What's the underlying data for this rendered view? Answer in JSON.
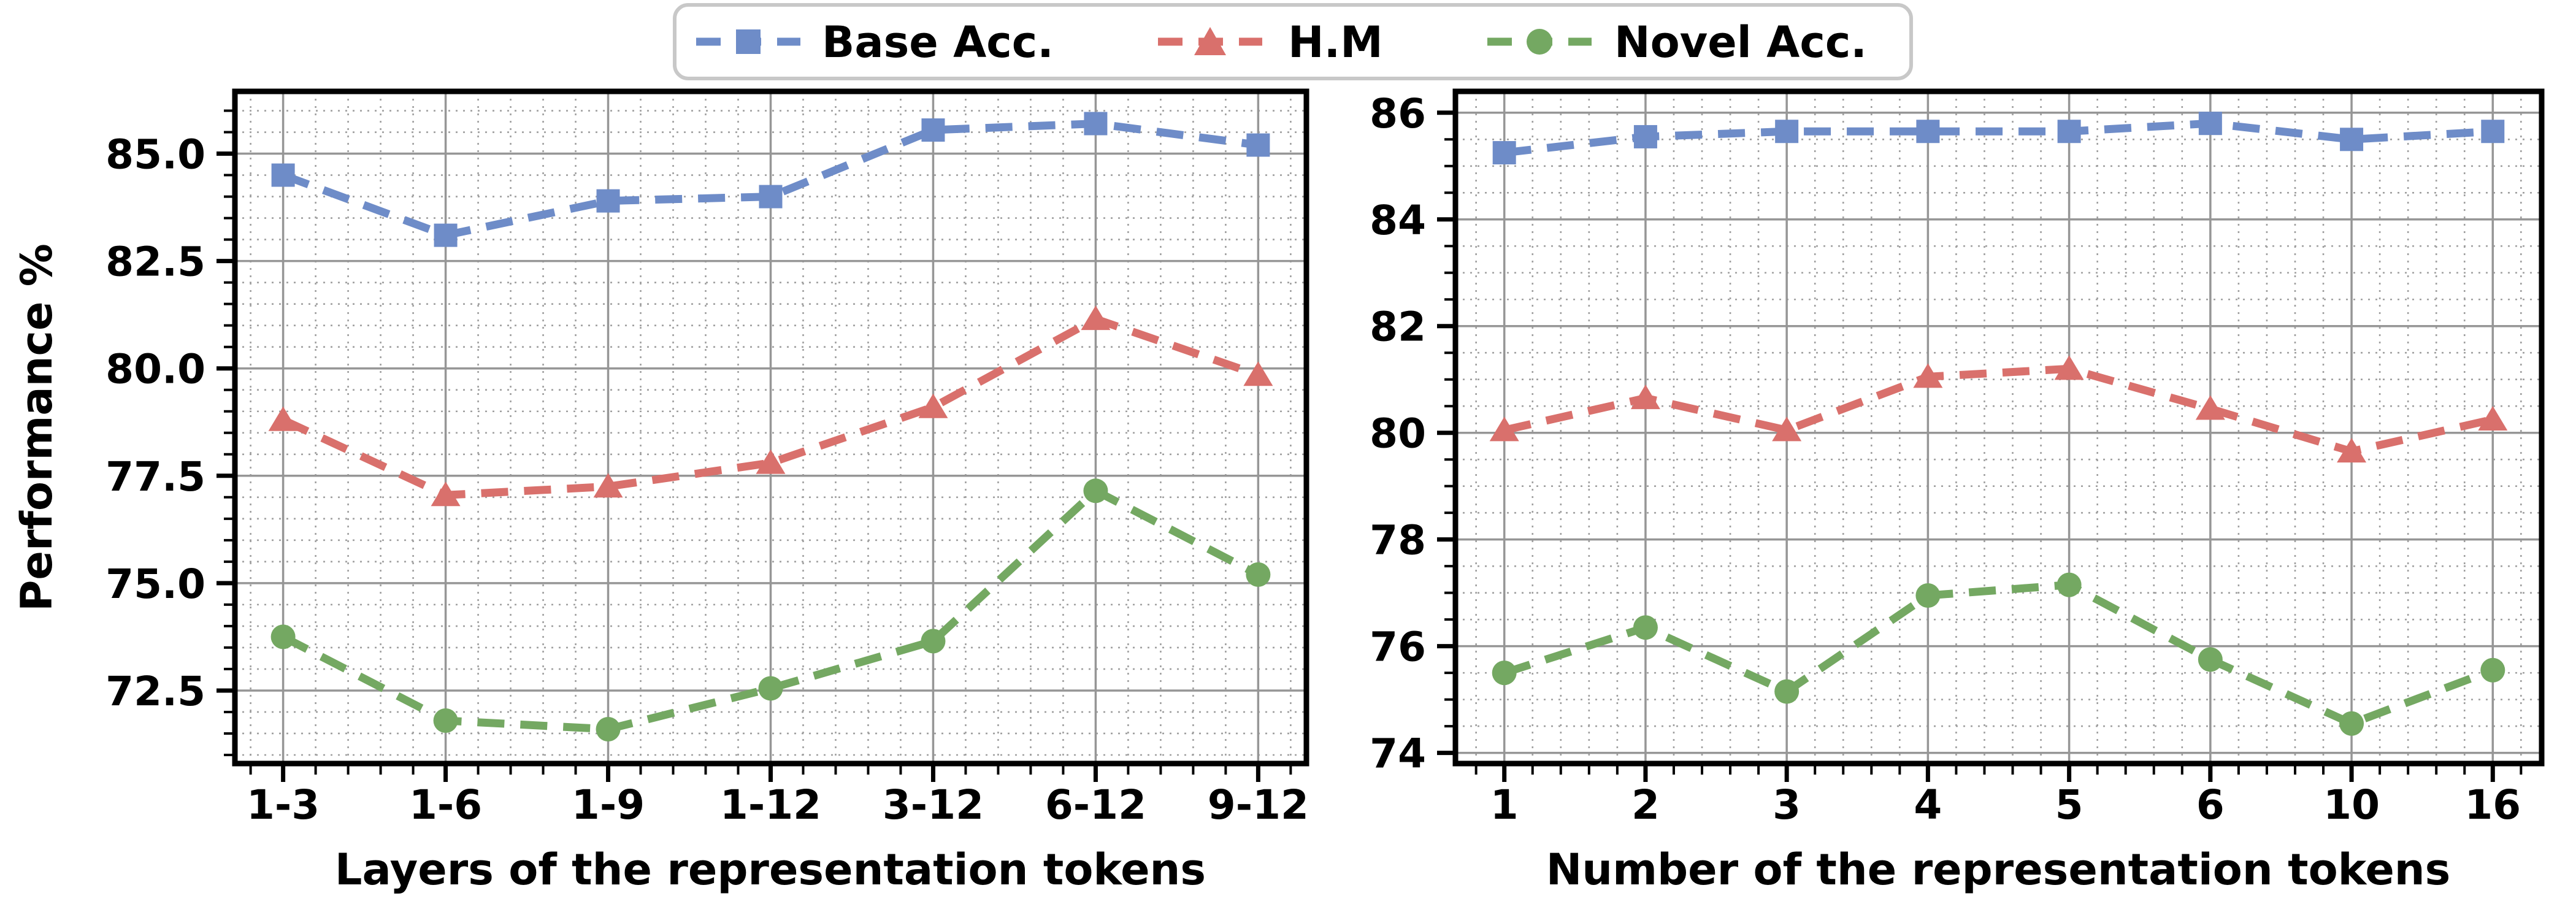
{
  "figure": {
    "background": "#ffffff"
  },
  "legend": {
    "border_color": "#c8c8c8",
    "background": "#ffffff",
    "items": [
      {
        "label": "Base Acc.",
        "color": "#6e8cc8",
        "marker": "square"
      },
      {
        "label": "H.M",
        "color": "#d9706c",
        "marker": "triangle"
      },
      {
        "label": "Novel Acc.",
        "color": "#74a862",
        "marker": "circle"
      }
    ]
  },
  "styles": {
    "major_grid_color": "#969696",
    "minor_grid_color": "#a0a0a0",
    "spine_color": "#000000",
    "text_color": "#000000"
  },
  "chart_data": [
    {
      "type": "line",
      "panel": "left",
      "title": "",
      "xlabel": "Layers of the representation tokens",
      "ylabel": "Performance %",
      "categories": [
        "1-3",
        "1-6",
        "1-9",
        "1-12",
        "3-12",
        "6-12",
        "9-12"
      ],
      "series": [
        {
          "name": "Base Acc.",
          "marker": "square",
          "color": "#6e8cc8",
          "values": [
            84.5,
            83.1,
            83.9,
            84.0,
            85.55,
            85.7,
            85.2
          ]
        },
        {
          "name": "H.M",
          "marker": "triangle",
          "color": "#d9706c",
          "values": [
            78.8,
            77.05,
            77.25,
            77.8,
            79.1,
            81.15,
            79.85
          ]
        },
        {
          "name": "Novel Acc.",
          "marker": "circle",
          "color": "#74a862",
          "values": [
            73.75,
            71.8,
            71.6,
            72.55,
            73.65,
            77.15,
            75.2
          ]
        }
      ],
      "ylim": [
        70.8,
        86.45
      ],
      "yticks": [
        72.5,
        75.0,
        77.5,
        80.0,
        82.5,
        85.0
      ],
      "ytick_labels": [
        "72.5",
        "75.0",
        "77.5",
        "80.0",
        "82.5",
        "85.0"
      ],
      "minor_y_step": 0.5,
      "grid": true,
      "legend_position": "top-center"
    },
    {
      "type": "line",
      "panel": "right",
      "title": "",
      "xlabel": "Number of the representation tokens",
      "ylabel": "",
      "categories": [
        "1",
        "2",
        "3",
        "4",
        "5",
        "6",
        "10",
        "16"
      ],
      "series": [
        {
          "name": "Base Acc.",
          "marker": "square",
          "color": "#6e8cc8",
          "values": [
            85.25,
            85.55,
            85.65,
            85.65,
            85.65,
            85.8,
            85.5,
            85.65
          ]
        },
        {
          "name": "H.M",
          "marker": "triangle",
          "color": "#d9706c",
          "values": [
            80.05,
            80.65,
            80.05,
            81.05,
            81.2,
            80.45,
            79.65,
            80.25
          ]
        },
        {
          "name": "Novel Acc.",
          "marker": "circle",
          "color": "#74a862",
          "values": [
            75.5,
            76.35,
            75.15,
            76.95,
            77.15,
            75.75,
            74.55,
            75.55
          ]
        }
      ],
      "ylim": [
        73.8,
        86.4
      ],
      "yticks": [
        74,
        76,
        78,
        80,
        82,
        84,
        86
      ],
      "ytick_labels": [
        "74",
        "76",
        "78",
        "80",
        "82",
        "84",
        "86"
      ],
      "minor_y_step": 0.5,
      "grid": true,
      "legend_position": "top-center"
    }
  ]
}
